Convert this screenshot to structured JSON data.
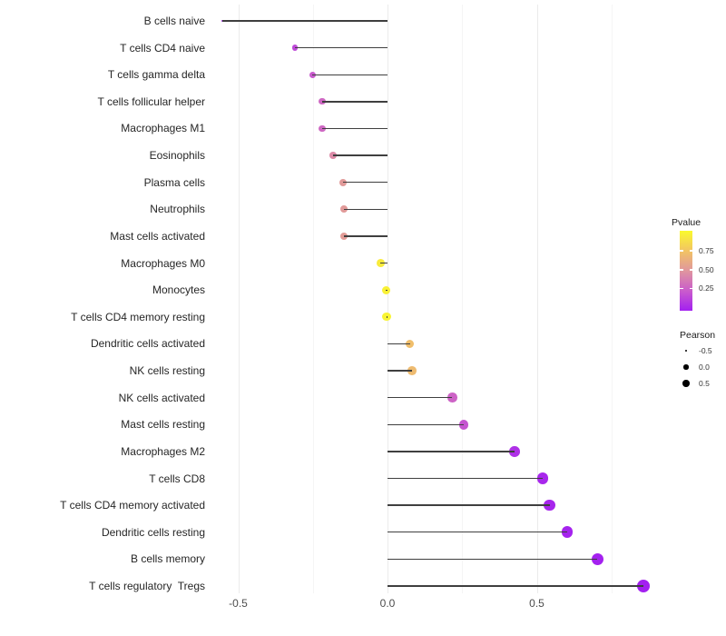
{
  "chart_data": {
    "type": "lollipop",
    "title": "",
    "xlabel": "",
    "ylabel": "",
    "grid": "vertical-only",
    "xlim": [
      -0.6,
      0.88
    ],
    "x_ticks": [
      {
        "label": "-0.5",
        "value": -0.5
      },
      {
        "label": "0.0",
        "value": 0.0
      },
      {
        "label": "0.5",
        "value": 0.5
      }
    ],
    "x_minor_gridlines": [
      -0.25,
      0.25,
      0.75
    ],
    "x_major_gridlines": [
      -0.5,
      0.0,
      0.5
    ],
    "points": [
      {
        "label": "B cells naive",
        "pearson": -0.553,
        "pvalue": 0.01
      },
      {
        "label": "T cells CD4 naive",
        "pearson": -0.31,
        "pvalue": 0.17
      },
      {
        "label": "T cells gamma delta",
        "pearson": -0.251,
        "pvalue": 0.24
      },
      {
        "label": "T cells follicular helper",
        "pearson": -0.219,
        "pvalue": 0.3
      },
      {
        "label": "Macrophages M1",
        "pearson": -0.219,
        "pvalue": 0.3
      },
      {
        "label": "Eosinophils",
        "pearson": -0.183,
        "pvalue": 0.45
      },
      {
        "label": "Plasma cells",
        "pearson": -0.149,
        "pvalue": 0.52
      },
      {
        "label": "Neutrophils",
        "pearson": -0.146,
        "pvalue": 0.52
      },
      {
        "label": "Mast cells activated",
        "pearson": -0.146,
        "pvalue": 0.53
      },
      {
        "label": "Macrophages M0",
        "pearson": -0.024,
        "pvalue": 0.93
      },
      {
        "label": "Monocytes",
        "pearson": -0.006,
        "pvalue": 0.96
      },
      {
        "label": "T cells CD4 memory resting",
        "pearson": -0.003,
        "pvalue": 0.97
      },
      {
        "label": "Dendritic cells activated",
        "pearson": 0.075,
        "pvalue": 0.72
      },
      {
        "label": "NK cells resting",
        "pearson": 0.083,
        "pvalue": 0.7
      },
      {
        "label": "NK cells activated",
        "pearson": 0.217,
        "pvalue": 0.28
      },
      {
        "label": "Mast cells resting",
        "pearson": 0.255,
        "pvalue": 0.22
      },
      {
        "label": "Macrophages M2",
        "pearson": 0.425,
        "pvalue": 0.07
      },
      {
        "label": "T cells CD8",
        "pearson": 0.519,
        "pvalue": 0.03
      },
      {
        "label": "T cells CD4 memory activated",
        "pearson": 0.543,
        "pvalue": 0.025
      },
      {
        "label": "Dendritic cells resting",
        "pearson": 0.602,
        "pvalue": 0.012
      },
      {
        "label": "B cells memory",
        "pearson": 0.703,
        "pvalue": 0.005
      },
      {
        "label": "T cells regulatory  Tregs",
        "pearson": 0.857,
        "pvalue": 0.002
      }
    ]
  },
  "legend": {
    "pvalue": {
      "title": "Pvalue",
      "ticks": [
        {
          "label": "0.75",
          "value": 0.75
        },
        {
          "label": "0.50",
          "value": 0.5
        },
        {
          "label": "0.25",
          "value": 0.25
        }
      ],
      "gradient_stops": [
        {
          "p": 0.0,
          "color": "#A320F0"
        },
        {
          "p": 0.25,
          "color": "#CA5CCC"
        },
        {
          "p": 0.5,
          "color": "#E0969E"
        },
        {
          "p": 0.75,
          "color": "#F2C464"
        },
        {
          "p": 1.0,
          "color": "#FAFA2D"
        }
      ]
    },
    "pearson": {
      "title": "Pearson",
      "items": [
        {
          "label": "-0.5",
          "value": -0.5
        },
        {
          "label": "0.0",
          "value": 0.0
        },
        {
          "label": "0.5",
          "value": 0.5
        }
      ]
    }
  },
  "colors": {
    "stick": "#3f3f3f",
    "major_grid": "#ebebeb",
    "minor_grid": "#f5f5f5",
    "axis_text": "#4d4d4d",
    "category_text": "#262626",
    "size_legend_dot": "#000000"
  }
}
